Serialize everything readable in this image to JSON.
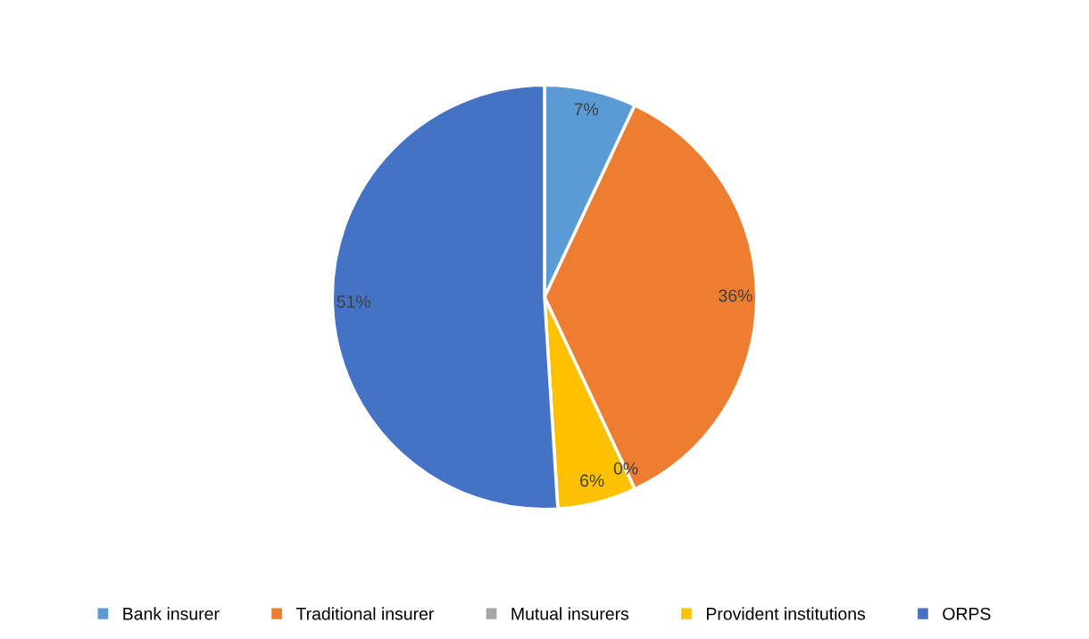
{
  "chart_data": {
    "type": "pie",
    "categories": [
      "Bank insurer",
      "Traditional insurer",
      "Mutual insurers",
      "Provident institutions",
      "ORPS"
    ],
    "values": [
      7,
      36,
      0,
      6,
      51
    ],
    "colors": [
      "#5b9bd5",
      "#ed7d31",
      "#a5a5a5",
      "#ffc000",
      "#4472c4"
    ],
    "value_labels": [
      "7%",
      "36%",
      "0%",
      "6%",
      "51%"
    ],
    "legend": "bottom"
  }
}
